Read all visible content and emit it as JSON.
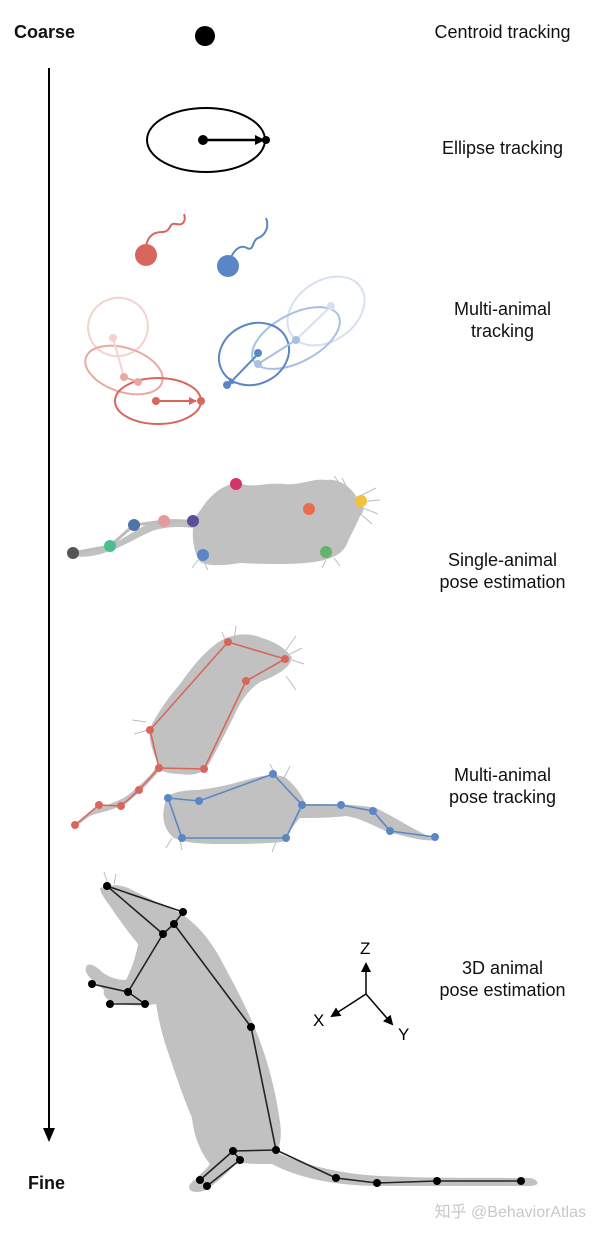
{
  "axis": {
    "top": "Coarse",
    "bottom": "Fine"
  },
  "levels": [
    {
      "id": "centroid",
      "lines": [
        "Centroid tracking"
      ]
    },
    {
      "id": "ellipse",
      "lines": [
        "Ellipse tracking"
      ]
    },
    {
      "id": "multi",
      "lines": [
        "Multi-animal",
        "tracking"
      ]
    },
    {
      "id": "single-pose",
      "lines": [
        "Single-animal",
        "pose estimation"
      ]
    },
    {
      "id": "multi-pose",
      "lines": [
        "Multi-animal",
        "pose tracking"
      ]
    },
    {
      "id": "pose3d",
      "lines": [
        "3D animal",
        "pose estimation"
      ]
    }
  ],
  "coord_axes": {
    "z": "Z",
    "x": "X",
    "y": "Y"
  },
  "colors": {
    "red": "#d9665d",
    "blue": "#5b86c5",
    "body": "#c1c1c1",
    "black": "#000000"
  },
  "keypoint_colors": [
    "#555555",
    "#4dbd8d",
    "#4e73a8",
    "#e39a9a",
    "#5b4f9a",
    "#d6336c",
    "#5b86c5",
    "#e86d4a",
    "#f0c33c",
    "#63b36a"
  ],
  "watermark": "知乎 @BehaviorAtlas"
}
